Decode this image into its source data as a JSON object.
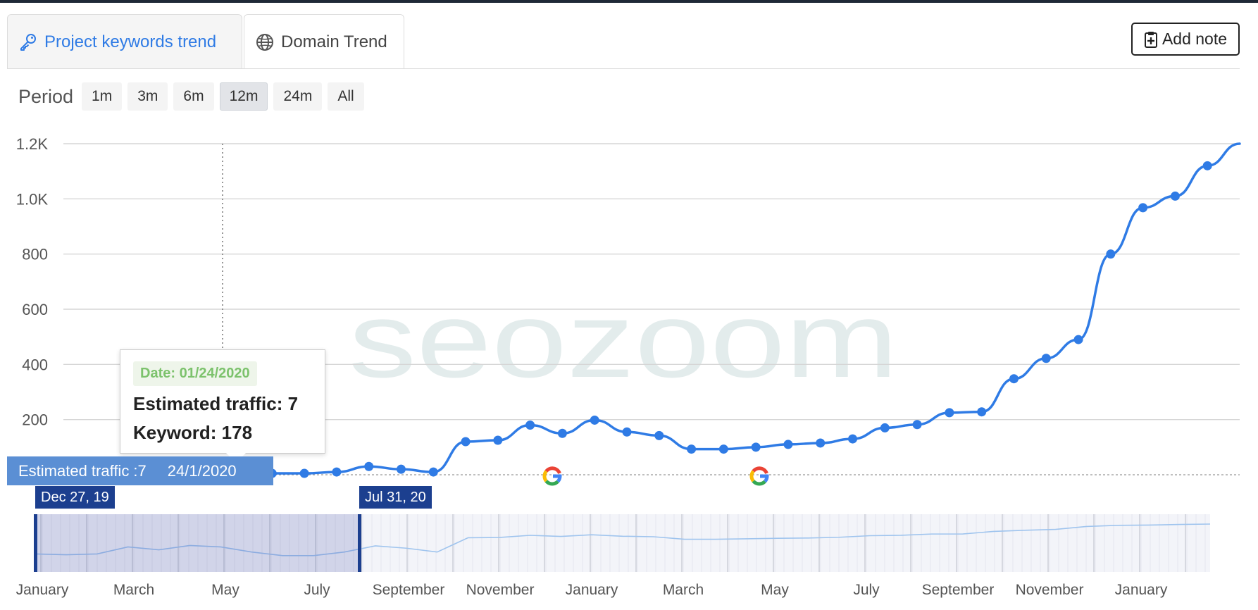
{
  "tabs": [
    {
      "label": "Project keywords trend",
      "icon": "key-icon",
      "active": false
    },
    {
      "label": "Domain Trend",
      "icon": "globe-icon",
      "active": true
    }
  ],
  "add_note_label": "Add note",
  "period": {
    "label": "Period",
    "options": [
      "1m",
      "3m",
      "6m",
      "12m",
      "24m",
      "All"
    ],
    "selected": "12m"
  },
  "watermark": "seozoom",
  "tooltip": {
    "date": "Date: 01/24/2020",
    "traffic": "Estimated traffic: 7",
    "keyword": "Keyword: 178"
  },
  "crosshair": {
    "series": "Estimated traffic :7",
    "date": "24/1/2020"
  },
  "navigator": {
    "start_label": "Dec 27, 19",
    "end_label": "Jul 31, 20",
    "month_labels": [
      "January",
      "March",
      "May",
      "July",
      "September",
      "November",
      "January",
      "March",
      "May",
      "July",
      "September",
      "November",
      "January"
    ]
  },
  "colors": {
    "line": "#2f7be5",
    "tab_active_text": "#2f7be5",
    "navigator_selected": "#1c3f8f",
    "tooltip_date": "#7cc26c",
    "crosshair_label_bg": "#5b8fd4"
  },
  "chart_data": {
    "type": "line",
    "series": [
      {
        "values": [
          7,
          6,
          7,
          25,
          15,
          32,
          25,
          10,
          5,
          5,
          10,
          30,
          20,
          10,
          120,
          125,
          180,
          150,
          198,
          155,
          142,
          93,
          93,
          100,
          110,
          115,
          130,
          170,
          182,
          225,
          228,
          348,
          422,
          490,
          800,
          968,
          1010,
          1120,
          1200
        ]
      }
    ],
    "y_ticks": [
      "1.2K",
      "1.0K",
      "800",
      "600",
      "400",
      "200"
    ],
    "ylim": [
      0,
      1200
    ],
    "grid": true,
    "annotations": [
      "google-update-marker",
      "google-update-marker"
    ]
  }
}
